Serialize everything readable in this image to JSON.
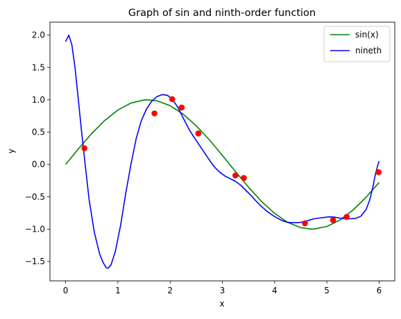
{
  "chart_data": {
    "type": "line",
    "title": "Graph of sin and ninth-order function",
    "xlabel": "x",
    "ylabel": "y",
    "xlim": [
      -0.3,
      6.3
    ],
    "ylim": [
      -1.8,
      2.2
    ],
    "xticks": [
      0,
      1,
      2,
      3,
      4,
      5,
      6
    ],
    "yticks": [
      -1.5,
      -1.0,
      -0.5,
      0.0,
      0.5,
      1.0,
      1.5,
      2.0
    ],
    "ytick_labels": [
      "−1.5",
      "−1.0",
      "−0.5",
      "0.0",
      "0.5",
      "1.0",
      "1.5",
      "2.0"
    ],
    "grid": false,
    "legend_position": "top-right",
    "series": [
      {
        "name": "sin(x)",
        "color": "#008000",
        "x": [
          0.0,
          0.25,
          0.5,
          0.75,
          1.0,
          1.25,
          1.5,
          1.571,
          1.75,
          2.0,
          2.25,
          2.5,
          2.75,
          3.0,
          3.25,
          3.5,
          3.75,
          4.0,
          4.25,
          4.5,
          4.712,
          4.75,
          5.0,
          5.25,
          5.5,
          5.75,
          6.0
        ],
        "y": [
          0.0,
          0.247,
          0.479,
          0.682,
          0.841,
          0.949,
          0.997,
          1.0,
          0.984,
          0.909,
          0.778,
          0.598,
          0.382,
          0.141,
          -0.108,
          -0.351,
          -0.572,
          -0.757,
          -0.895,
          -0.978,
          -1.0,
          -0.999,
          -0.959,
          -0.859,
          -0.706,
          -0.508,
          -0.279
        ]
      },
      {
        "name": "nineth",
        "color": "#0000ff",
        "x": [
          0.0,
          0.06,
          0.12,
          0.18,
          0.25,
          0.3,
          0.36,
          0.45,
          0.55,
          0.65,
          0.72,
          0.78,
          0.82,
          0.87,
          0.95,
          1.05,
          1.15,
          1.25,
          1.35,
          1.45,
          1.55,
          1.65,
          1.75,
          1.85,
          1.95,
          2.05,
          2.15,
          2.25,
          2.35,
          2.45,
          2.55,
          2.65,
          2.75,
          2.85,
          2.95,
          3.05,
          3.15,
          3.25,
          3.35,
          3.45,
          3.55,
          3.65,
          3.75,
          3.85,
          3.95,
          4.05,
          4.15,
          4.25,
          4.35,
          4.45,
          4.55,
          4.65,
          4.75,
          4.85,
          4.95,
          5.05,
          5.15,
          5.25,
          5.35,
          5.45,
          5.55,
          5.65,
          5.75,
          5.82,
          5.88,
          5.93,
          5.97,
          6.0
        ],
        "y": [
          1.9,
          2.0,
          1.85,
          1.5,
          0.95,
          0.55,
          0.1,
          -0.55,
          -1.05,
          -1.38,
          -1.52,
          -1.6,
          -1.6,
          -1.55,
          -1.35,
          -0.95,
          -0.45,
          0.0,
          0.4,
          0.68,
          0.86,
          0.98,
          1.05,
          1.08,
          1.07,
          1.0,
          0.88,
          0.72,
          0.56,
          0.43,
          0.31,
          0.19,
          0.07,
          -0.04,
          -0.12,
          -0.18,
          -0.22,
          -0.26,
          -0.32,
          -0.4,
          -0.48,
          -0.57,
          -0.65,
          -0.72,
          -0.78,
          -0.83,
          -0.87,
          -0.895,
          -0.9,
          -0.9,
          -0.89,
          -0.865,
          -0.84,
          -0.83,
          -0.82,
          -0.81,
          -0.815,
          -0.83,
          -0.84,
          -0.84,
          -0.835,
          -0.8,
          -0.7,
          -0.55,
          -0.35,
          -0.15,
          -0.03,
          0.05
        ]
      }
    ],
    "scatter": {
      "color": "#ff0000",
      "x": [
        0.36,
        1.7,
        2.04,
        2.22,
        2.54,
        3.25,
        3.41,
        4.58,
        5.12,
        5.38,
        5.99
      ],
      "y": [
        0.25,
        0.79,
        1.01,
        0.88,
        0.48,
        -0.17,
        -0.21,
        -0.91,
        -0.86,
        -0.81,
        -0.12
      ]
    }
  }
}
